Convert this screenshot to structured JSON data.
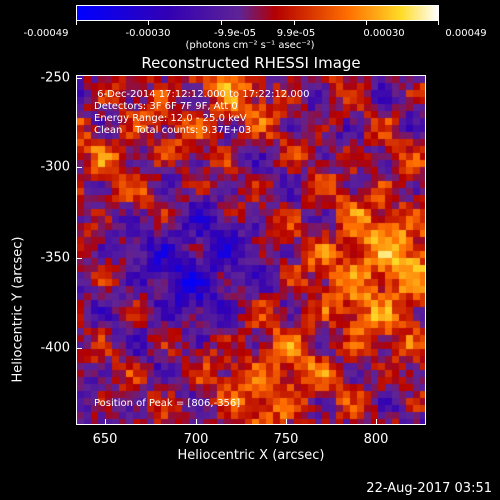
{
  "chart_data": {
    "type": "heatmap",
    "title": "Reconstructed RHESSI Image",
    "xlabel": "Heliocentric X (arcsec)",
    "ylabel": "Heliocentric Y (arcsec)",
    "xlim": [
      634,
      827
    ],
    "ylim": [
      -444,
      -248
    ],
    "x_ticks": [
      "650",
      "700",
      "750",
      "800"
    ],
    "y_ticks": [
      "-250",
      "-300",
      "-350",
      "-400"
    ],
    "colorbar": {
      "range": [
        -0.00049,
        0.00049
      ],
      "tick_labels": [
        "-0.00049",
        "-0.00030",
        "-9.9e-05",
        "9.9e-05",
        "0.00030",
        "0.00049"
      ],
      "label": "(photons cm⁻² s⁻¹ asec⁻²)"
    },
    "annotations": [
      " 6-Dec-2014 17:12:12.000 to 17:22:12.000",
      "Detectors: 3F 6F 7F 9F, Att 0",
      "Energy Range: 12.0 - 25.0 keV",
      "Clean    Total counts: 9.37E+03"
    ],
    "peak_label": "Position of Peak = [806,-356]",
    "peak_position": [
      806,
      -356
    ],
    "footer_date": "22-Aug-2017 03:51"
  }
}
